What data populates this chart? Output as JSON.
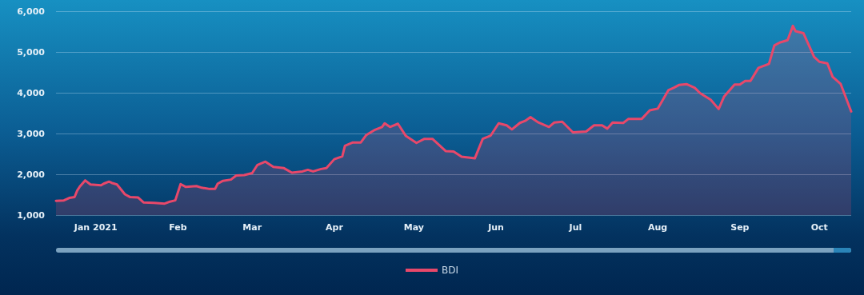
{
  "chart_data": {
    "type": "area",
    "xlim": [
      "2020-12-17",
      "2021-10-13"
    ],
    "xticks": [
      {
        "value": "2021-01-01",
        "label": "Jan 2021"
      },
      {
        "value": "2021-02-01",
        "label": "Feb"
      },
      {
        "value": "2021-03-01",
        "label": "Mar"
      },
      {
        "value": "2021-04-01",
        "label": "Apr"
      },
      {
        "value": "2021-05-01",
        "label": "May"
      },
      {
        "value": "2021-06-01",
        "label": "Jun"
      },
      {
        "value": "2021-07-01",
        "label": "Jul"
      },
      {
        "value": "2021-08-01",
        "label": "Aug"
      },
      {
        "value": "2021-09-01",
        "label": "Sep"
      },
      {
        "value": "2021-10-01",
        "label": "Oct"
      }
    ],
    "ylim": [
      1000,
      6000
    ],
    "yticks": [
      {
        "value": 1000,
        "label": "1,000"
      },
      {
        "value": 2000,
        "label": "2,000"
      },
      {
        "value": 3000,
        "label": "3,000"
      },
      {
        "value": 4000,
        "label": "4,000"
      },
      {
        "value": 5000,
        "label": "5,000"
      },
      {
        "value": 6000,
        "label": "6,000"
      }
    ],
    "grid": "y",
    "legend": "bottom",
    "marker": "none",
    "line_style": "solid",
    "series": [
      {
        "name": "BDI",
        "color": "#e8486a",
        "x": [
          "2020-12-17",
          "2020-12-20",
          "2020-12-22",
          "2020-12-24",
          "2020-12-25",
          "2020-12-26",
          "2020-12-28",
          "2020-12-30",
          "2021-01-03",
          "2021-01-04",
          "2021-01-06",
          "2021-01-07",
          "2021-01-09",
          "2021-01-12",
          "2021-01-14",
          "2021-01-17",
          "2021-01-19",
          "2021-01-23",
          "2021-01-27",
          "2021-01-29",
          "2021-01-31",
          "2021-02-02",
          "2021-02-04",
          "2021-02-08",
          "2021-02-10",
          "2021-02-13",
          "2021-02-15",
          "2021-02-16",
          "2021-02-18",
          "2021-02-21",
          "2021-02-23",
          "2021-02-26",
          "2021-03-01",
          "2021-03-03",
          "2021-03-06",
          "2021-03-09",
          "2021-03-13",
          "2021-03-16",
          "2021-03-20",
          "2021-03-22",
          "2021-03-24",
          "2021-03-27",
          "2021-03-29",
          "2021-04-01",
          "2021-04-04",
          "2021-04-05",
          "2021-04-08",
          "2021-04-11",
          "2021-04-13",
          "2021-04-16",
          "2021-04-19",
          "2021-04-20",
          "2021-04-22",
          "2021-04-25",
          "2021-04-28",
          "2021-05-02",
          "2021-05-05",
          "2021-05-08",
          "2021-05-13",
          "2021-05-16",
          "2021-05-19",
          "2021-05-24",
          "2021-05-27",
          "2021-05-30",
          "2021-06-02",
          "2021-06-05",
          "2021-06-07",
          "2021-06-10",
          "2021-06-12",
          "2021-06-14",
          "2021-06-17",
          "2021-06-21",
          "2021-06-23",
          "2021-06-26",
          "2021-06-30",
          "2021-07-05",
          "2021-07-08",
          "2021-07-11",
          "2021-07-13",
          "2021-07-15",
          "2021-07-19",
          "2021-07-21",
          "2021-07-26",
          "2021-07-29",
          "2021-08-01",
          "2021-08-05",
          "2021-08-07",
          "2021-08-09",
          "2021-08-12",
          "2021-08-15",
          "2021-08-17",
          "2021-08-21",
          "2021-08-24",
          "2021-08-26",
          "2021-08-30",
          "2021-09-01",
          "2021-09-03",
          "2021-09-05",
          "2021-09-08",
          "2021-09-12",
          "2021-09-14",
          "2021-09-16",
          "2021-09-19",
          "2021-09-21",
          "2021-09-22",
          "2021-09-25",
          "2021-09-29",
          "2021-10-01",
          "2021-10-04",
          "2021-10-06",
          "2021-10-09",
          "2021-10-13"
        ],
        "values": [
          1350,
          1360,
          1420,
          1440,
          1600,
          1700,
          1850,
          1750,
          1730,
          1770,
          1820,
          1790,
          1750,
          1510,
          1440,
          1430,
          1310,
          1300,
          1280,
          1330,
          1360,
          1760,
          1690,
          1710,
          1670,
          1640,
          1640,
          1770,
          1840,
          1870,
          1970,
          1980,
          2030,
          2230,
          2310,
          2180,
          2150,
          2040,
          2070,
          2110,
          2070,
          2130,
          2150,
          2370,
          2440,
          2700,
          2780,
          2780,
          2960,
          3080,
          3160,
          3250,
          3160,
          3240,
          2940,
          2770,
          2870,
          2870,
          2570,
          2560,
          2430,
          2390,
          2870,
          2950,
          3250,
          3200,
          3100,
          3260,
          3310,
          3400,
          3270,
          3160,
          3270,
          3290,
          3030,
          3050,
          3200,
          3200,
          3120,
          3270,
          3260,
          3360,
          3360,
          3570,
          3610,
          4060,
          4120,
          4190,
          4210,
          4120,
          3990,
          3830,
          3600,
          3900,
          4200,
          4200,
          4290,
          4290,
          4610,
          4710,
          5160,
          5230,
          5290,
          5640,
          5510,
          5460,
          4880,
          4760,
          4720,
          4390,
          4220,
          3540
        ]
      }
    ]
  }
}
